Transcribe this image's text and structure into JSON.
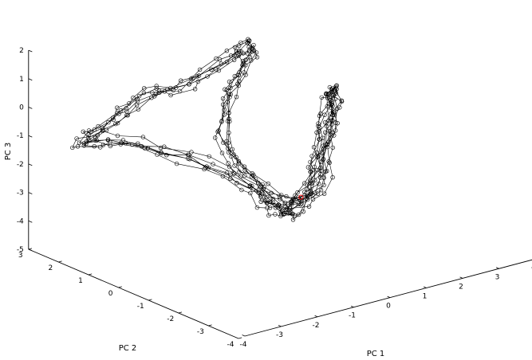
{
  "chart_data": {
    "type": "scatter",
    "subtype": "3d-line-with-markers",
    "title": "",
    "xlabel": "PC 1",
    "ylabel": "PC 2",
    "zlabel": "PC 3",
    "xlim": [
      -4,
      4
    ],
    "ylim": [
      -4,
      3
    ],
    "zlim": [
      -5,
      2
    ],
    "xticks": [
      "-4",
      "-3",
      "-2",
      "-1",
      "0",
      "1",
      "2",
      "3",
      "4"
    ],
    "yticks": [
      "-4",
      "-3",
      "-2",
      "-1",
      "0",
      "1",
      "2",
      "3"
    ],
    "zticks": [
      "-5",
      "-4",
      "-3",
      "-2",
      "-1",
      "0",
      "1",
      "2"
    ],
    "grid": false,
    "legend": "none",
    "line_color": "#000000",
    "highlight_color": "#ff0000",
    "waypoints": [
      [
        3.4,
        1.9,
        -1.4
      ],
      [
        2.6,
        1.1,
        -1.9
      ],
      [
        1.7,
        0.3,
        -2.5
      ],
      [
        0.6,
        -0.6,
        -2.9
      ],
      [
        -0.4,
        -1.3,
        -3.0
      ],
      [
        -1.1,
        -1.6,
        -2.4
      ],
      [
        -1.6,
        -1.3,
        -1.6
      ],
      [
        -2.2,
        0.0,
        -1.0
      ],
      [
        -2.9,
        1.3,
        -0.8
      ],
      [
        -3.3,
        2.1,
        -1.0
      ],
      [
        -2.8,
        1.7,
        -0.3
      ],
      [
        -2.0,
        1.6,
        0.4
      ],
      [
        -1.4,
        1.0,
        0.8
      ],
      [
        -0.6,
        0.4,
        1.8
      ],
      [
        -0.2,
        0.3,
        2.1
      ],
      [
        -0.5,
        0.2,
        1.3
      ],
      [
        -1.2,
        -0.1,
        0.5
      ],
      [
        -1.5,
        -0.6,
        -0.7
      ],
      [
        -1.3,
        -1.2,
        -1.6
      ],
      [
        -0.6,
        -1.5,
        -2.5
      ],
      [
        0.8,
        -0.8,
        -2.7
      ],
      [
        2.0,
        0.4,
        -2.2
      ],
      [
        3.0,
        1.4,
        -1.6
      ],
      [
        3.4,
        1.9,
        -1.4
      ]
    ],
    "highlight_point": [
      0.2,
      -1.0,
      -2.8
    ],
    "laps": 6,
    "samples_per_segment": 3,
    "noise": 0.12
  }
}
